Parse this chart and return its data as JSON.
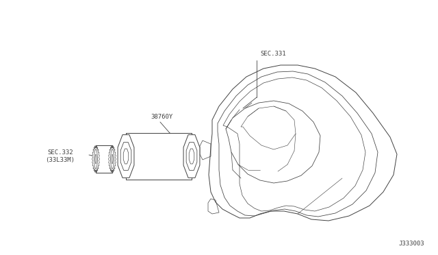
{
  "background_color": "#ffffff",
  "line_color": "#404040",
  "label_sec331": "SEC.331",
  "label_38760y": "38760Y",
  "label_sec332": "SEC.332\n(33L33M)",
  "label_j333003": "J333003",
  "fig_width": 6.4,
  "fig_height": 3.72,
  "dpi": 100
}
